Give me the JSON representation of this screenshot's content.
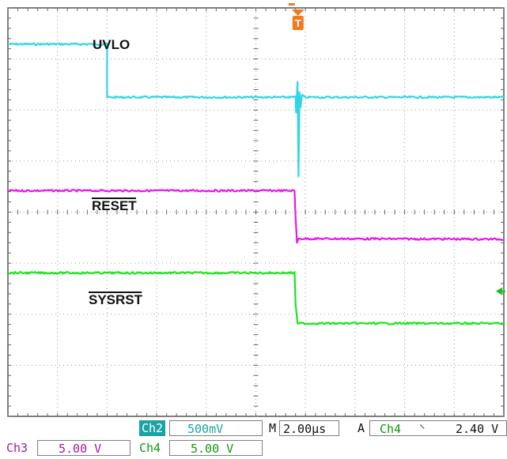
{
  "chart_data": {
    "type": "line",
    "title": "",
    "grid": true,
    "grid_divisions": {
      "x": 10,
      "y": 8
    },
    "x_range_div": [
      0,
      10
    ],
    "y_range_div": [
      0,
      8
    ],
    "series": [
      {
        "name": "UVLO",
        "overline": false,
        "color": "#2fd6e6",
        "x": [
          0,
          2.0,
          2.0,
          5.8,
          5.81,
          5.84,
          5.86,
          5.88,
          5.9,
          5.93,
          6.0,
          10
        ],
        "y": [
          7.29,
          7.29,
          6.25,
          6.25,
          5.95,
          6.55,
          4.7,
          6.35,
          6.05,
          6.3,
          6.25,
          6.25
        ]
      },
      {
        "name": "RESET",
        "overline": true,
        "color": "#e619e6",
        "x": [
          0,
          5.78,
          5.8,
          5.83,
          5.86,
          10
        ],
        "y": [
          4.42,
          4.42,
          3.9,
          3.4,
          3.48,
          3.47
        ]
      },
      {
        "name": "SYSRST",
        "overline": true,
        "color": "#19e619",
        "x": [
          0,
          5.78,
          5.8,
          5.84,
          10
        ],
        "y": [
          2.81,
          2.81,
          2.2,
          1.82,
          1.82
        ]
      }
    ],
    "trigger_marker": {
      "label": "T",
      "x_div": 5.85
    },
    "trigger_level_div": 2.45
  },
  "readouts": {
    "ch2_tag": "Ch2",
    "ch2_scale": "500mV",
    "timebase_prefix": "M",
    "timebase": "2.00µs",
    "trigger_prefix": "A",
    "trigger_source": "Ch4",
    "trigger_slope": "⸌",
    "trigger_level": "2.40 V",
    "ch3_tag": "Ch3",
    "ch3_scale": "5.00 V",
    "ch4_tag": "Ch4",
    "ch4_scale": "5.00 V"
  },
  "colors": {
    "ch2": "#1aa3a3",
    "ch3": "#a01aa0",
    "ch4": "#0f9a0f",
    "trigger_marker": "#f07a1e"
  }
}
